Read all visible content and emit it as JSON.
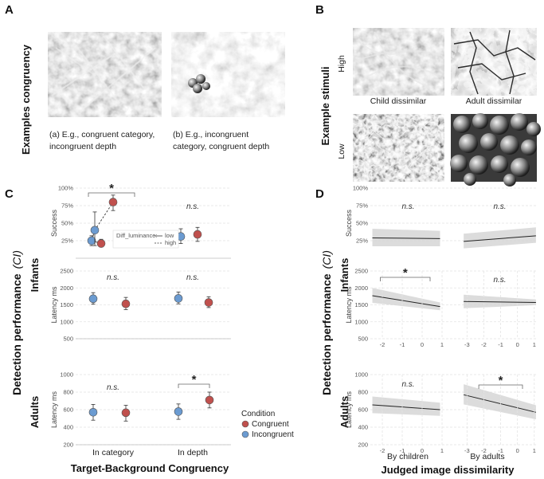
{
  "panels": {
    "A": {
      "letter": "A",
      "title": "Examples congruency",
      "caption_a_line1": "(a) E.g., congruent category,",
      "caption_a_line2": "incongruent depth",
      "caption_b_line1": "(b) E.g., incongruent",
      "caption_b_line2": "category, congruent depth"
    },
    "B": {
      "letter": "B",
      "title": "Example stimuli",
      "row_high": "High",
      "row_low": "Low",
      "col_child": "Child dissimilar",
      "col_adult": "Adult dissimilar"
    },
    "C": {
      "letter": "C",
      "ylabel_main": "Detection performance",
      "ylabel_ci": "(CI)",
      "row_infants": "Infants",
      "row_adults": "Adults",
      "xlabel": "Target-Background Congruency",
      "legend_title": "Condition",
      "legend_congruent": "Congruent",
      "legend_incongruent": "Incongruent",
      "diff_lum_label": "Diff_luminance:",
      "diff_low": "low",
      "diff_high": "high"
    },
    "D": {
      "letter": "D",
      "ylabel_main": "Detection performance",
      "ylabel_ci": "(CI)",
      "row_infants": "Infants",
      "row_adults": "Adults",
      "xlabel": "Judged image dissimilarity",
      "by_children": "By children",
      "by_adults": "By adults"
    }
  },
  "colors": {
    "congruent": "#c0504d",
    "incongruent": "#6b9bd1",
    "band": "#d6d6d6"
  },
  "chart_data": [
    {
      "id": "C-infant-success",
      "type": "scatter",
      "ylabel": "Success",
      "ylim": [
        0,
        100
      ],
      "yticks": [
        "25%",
        "50%",
        "75%",
        "100%"
      ],
      "categories": [
        "In category",
        "In depth"
      ],
      "series": [
        {
          "name": "Congruent",
          "points": [
            {
              "category": "In category",
              "subgroup": "low",
              "y": 21,
              "lo": 16,
              "hi": 27
            },
            {
              "category": "In category",
              "subgroup": "high",
              "y": 80,
              "lo": 68,
              "hi": 90
            },
            {
              "category": "In depth",
              "y": 34,
              "lo": 24,
              "hi": 44
            }
          ]
        },
        {
          "name": "Incongruent",
          "points": [
            {
              "category": "In category",
              "subgroup": "low",
              "y": 25,
              "lo": 18,
              "hi": 32
            },
            {
              "category": "In category",
              "subgroup": "high",
              "y": 40,
              "lo": 18,
              "hi": 66
            },
            {
              "category": "In depth",
              "y": 31,
              "lo": 21,
              "hi": 42
            }
          ]
        }
      ],
      "annotations": [
        {
          "text": "*",
          "between": "In category"
        },
        {
          "text": "n.s.",
          "at": "In depth"
        }
      ]
    },
    {
      "id": "C-infant-latency",
      "type": "scatter",
      "ylabel": "Latency ms",
      "ylim": [
        500,
        2500
      ],
      "yticks": [
        "500",
        "1000",
        "1500",
        "2000",
        "2500"
      ],
      "categories": [
        "In category",
        "In depth"
      ],
      "series": [
        {
          "name": "Congruent",
          "points": [
            {
              "category": "In category",
              "y": 1530,
              "lo": 1360,
              "hi": 1720
            },
            {
              "category": "In depth",
              "y": 1570,
              "lo": 1420,
              "hi": 1740
            }
          ]
        },
        {
          "name": "Incongruent",
          "points": [
            {
              "category": "In category",
              "y": 1680,
              "lo": 1520,
              "hi": 1860
            },
            {
              "category": "In depth",
              "y": 1690,
              "lo": 1530,
              "hi": 1880
            }
          ]
        }
      ],
      "annotations": [
        {
          "text": "n.s.",
          "at": "In category"
        },
        {
          "text": "n.s.",
          "at": "In depth"
        }
      ]
    },
    {
      "id": "C-adult-latency",
      "type": "scatter",
      "ylabel": "Latency ms",
      "ylim": [
        200,
        1000
      ],
      "yticks": [
        "200",
        "400",
        "600",
        "800",
        "1000"
      ],
      "categories": [
        "In category",
        "In depth"
      ],
      "series": [
        {
          "name": "Congruent",
          "points": [
            {
              "category": "In category",
              "y": 565,
              "lo": 470,
              "hi": 650
            },
            {
              "category": "In depth",
              "y": 710,
              "lo": 620,
              "hi": 800
            }
          ]
        },
        {
          "name": "Incongruent",
          "points": [
            {
              "category": "In category",
              "y": 570,
              "lo": 480,
              "hi": 660
            },
            {
              "category": "In depth",
              "y": 578,
              "lo": 490,
              "hi": 665
            }
          ]
        }
      ],
      "annotations": [
        {
          "text": "n.s.",
          "at": "In category"
        },
        {
          "text": "*",
          "between": "In depth"
        }
      ]
    },
    {
      "id": "D-infant-success",
      "type": "line",
      "ylabel": "Success",
      "ylim": [
        0,
        100
      ],
      "yticks": [
        "25%",
        "50%",
        "75%",
        "100%"
      ],
      "facets": [
        {
          "name": "By children",
          "xlim": [
            -2.6,
            1.2
          ],
          "x": [
            -2.5,
            0.9
          ],
          "y": [
            29,
            28
          ],
          "band_lo": [
            17,
            17
          ],
          "band_hi": [
            42,
            39
          ],
          "annotation": "n.s."
        },
        {
          "name": "By adults",
          "xlim": [
            -3.3,
            1.2
          ],
          "x": [
            -3.2,
            1.1
          ],
          "y": [
            24,
            32
          ],
          "band_lo": [
            14,
            22
          ],
          "band_hi": [
            35,
            44
          ],
          "annotation": "n.s."
        }
      ]
    },
    {
      "id": "D-infant-latency",
      "type": "line",
      "ylabel": "Latency ms",
      "ylim": [
        500,
        2500
      ],
      "yticks": [
        "500",
        "1000",
        "1500",
        "2000",
        "2500"
      ],
      "xticks_children": [
        "-2",
        "-1",
        "0",
        "1"
      ],
      "xticks_adults": [
        "-3",
        "-2",
        "-1",
        "0",
        "1"
      ],
      "facets": [
        {
          "name": "By children",
          "xlim": [
            -2.6,
            1.2
          ],
          "x": [
            -2.5,
            0.9
          ],
          "y": [
            1770,
            1450
          ],
          "band_lo": [
            1560,
            1340
          ],
          "band_hi": [
            2000,
            1570
          ],
          "annotation": "*"
        },
        {
          "name": "By adults",
          "xlim": [
            -3.3,
            1.2
          ],
          "x": [
            -3.2,
            1.1
          ],
          "y": [
            1600,
            1570
          ],
          "band_lo": [
            1400,
            1490
          ],
          "band_hi": [
            1800,
            1660
          ],
          "annotation": "n.s."
        }
      ]
    },
    {
      "id": "D-adult-latency",
      "type": "line",
      "ylabel": "Latency ms",
      "ylim": [
        200,
        1000
      ],
      "yticks": [
        "200",
        "400",
        "600",
        "800",
        "1000"
      ],
      "xticks_children": [
        "-2",
        "-1",
        "0",
        "1"
      ],
      "xticks_adults": [
        "-3",
        "-2",
        "-1",
        "0",
        "1"
      ],
      "facets": [
        {
          "name": "By children",
          "xlim": [
            -2.6,
            1.2
          ],
          "x": [
            -2.5,
            0.9
          ],
          "y": [
            655,
            600
          ],
          "band_lo": [
            560,
            530
          ],
          "band_hi": [
            750,
            680
          ],
          "annotation": "n.s."
        },
        {
          "name": "By adults",
          "xlim": [
            -3.3,
            1.2
          ],
          "x": [
            -3.2,
            1.1
          ],
          "y": [
            770,
            570
          ],
          "band_lo": [
            660,
            490
          ],
          "band_hi": [
            890,
            650
          ],
          "annotation": "*"
        }
      ]
    }
  ]
}
